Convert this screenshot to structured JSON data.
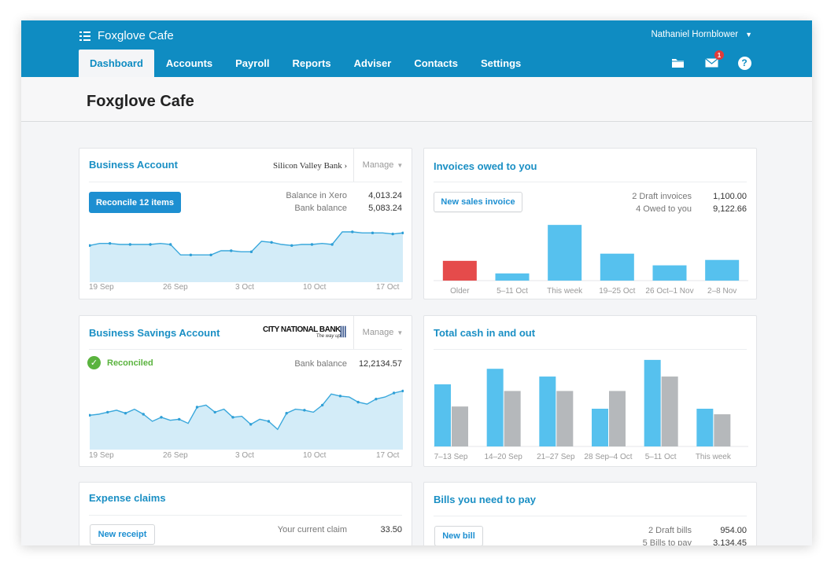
{
  "app": {
    "org_name": "Foxglove Cafe",
    "user_name": "Nathaniel Hornblower",
    "page_title": "Foxglove Cafe",
    "nav_tabs": [
      "Dashboard",
      "Accounts",
      "Payroll",
      "Reports",
      "Adviser",
      "Contacts",
      "Settings"
    ],
    "active_tab": "Dashboard",
    "notifications_count": "1",
    "icons": [
      "menu-icon",
      "folder-icon",
      "mail-icon",
      "help-icon",
      "chevron-down-icon"
    ],
    "accent_color": "#0f8cc2",
    "link_color": "#1a8fc4",
    "bar_blue": "#56c1ee",
    "bar_gray": "#b5b8bb",
    "bar_red": "#e54b4b",
    "success_green": "#5ab33e"
  },
  "business_account": {
    "title": "Business Account",
    "bank": "Silicon Valley Bank",
    "manage_label": "Manage",
    "button_label": "Reconcile 12 items",
    "stats": [
      {
        "label": "Balance in Xero",
        "value": "4,013.24"
      },
      {
        "label": "Bank balance",
        "value": "5,083.24"
      }
    ],
    "x_labels": [
      "19 Sep",
      "26 Sep",
      "3 Oct",
      "10 Oct",
      "17 Oct"
    ]
  },
  "invoices": {
    "title": "Invoices owed to you",
    "button_label": "New sales invoice",
    "stats": [
      {
        "label": "2 Draft invoices",
        "value": "1,100.00"
      },
      {
        "label": "4 Owed to you",
        "value": "9,122.66"
      }
    ]
  },
  "savings_account": {
    "title": "Business Savings Account",
    "bank_logo_text": "CITY NATIONAL BANK",
    "bank_logo_sub": "The way up",
    "manage_label": "Manage",
    "status_label": "Reconciled",
    "stats": [
      {
        "label": "Bank balance",
        "value": "12,2134.57"
      }
    ],
    "x_labels": [
      "19 Sep",
      "26 Sep",
      "3 Oct",
      "10 Oct",
      "17 Oct"
    ]
  },
  "cash": {
    "title": "Total cash in and out"
  },
  "expenses": {
    "title": "Expense claims",
    "button_label": "New receipt",
    "stats": [
      {
        "label": "Your current claim",
        "value": "33.50"
      }
    ]
  },
  "bills": {
    "title": "Bills you need to pay",
    "button_label": "New bill",
    "stats": [
      {
        "label": "2 Draft bills",
        "value": "954.00"
      },
      {
        "label": "5 Bills to pay",
        "value": "3,134.45"
      }
    ]
  },
  "chart_data": [
    {
      "type": "area",
      "title": "Business Account",
      "x_ticks": [
        "19 Sep",
        "26 Sep",
        "3 Oct",
        "10 Oct",
        "17 Oct"
      ],
      "y": [
        35,
        37,
        37,
        36,
        36,
        36,
        36,
        37,
        36,
        26,
        26,
        26,
        26,
        30,
        30,
        29,
        29,
        39,
        38,
        36,
        35,
        36,
        36,
        37,
        36,
        48,
        48,
        47,
        47,
        47,
        46,
        47
      ],
      "ylim": [
        0,
        60
      ],
      "grid": false
    },
    {
      "type": "bar",
      "title": "Invoices owed to you",
      "categories": [
        "Older",
        "5–11 Oct",
        "This week",
        "19–25 Oct",
        "26 Oct–1 Nov",
        "2–8 Nov"
      ],
      "values": [
        22,
        8,
        62,
        30,
        17,
        23
      ],
      "ylim": [
        0,
        70
      ],
      "highlight": "Older"
    },
    {
      "type": "area",
      "title": "Business Savings Account",
      "x_ticks": [
        "19 Sep",
        "26 Sep",
        "3 Oct",
        "10 Oct",
        "17 Oct"
      ],
      "y": [
        34,
        35,
        37,
        39,
        36,
        40,
        35,
        28,
        32,
        29,
        30,
        26,
        42,
        44,
        37,
        40,
        32,
        33,
        25,
        30,
        28,
        20,
        36,
        40,
        39,
        37,
        44,
        55,
        53,
        52,
        47,
        45,
        50,
        52,
        56,
        58
      ],
      "ylim": [
        0,
        70
      ],
      "grid": false
    },
    {
      "type": "bar",
      "title": "Total cash in and out",
      "categories": [
        "7–13 Sep",
        "14–20 Sep",
        "21–27 Sep",
        "28 Sep–4 Oct",
        "5–11 Oct",
        "This week"
      ],
      "series": [
        {
          "values": [
            56,
            70,
            63,
            34,
            78,
            34
          ]
        },
        {
          "values": [
            36,
            50,
            50,
            50,
            63,
            29
          ]
        }
      ],
      "ylim": [
        0,
        85
      ]
    }
  ]
}
